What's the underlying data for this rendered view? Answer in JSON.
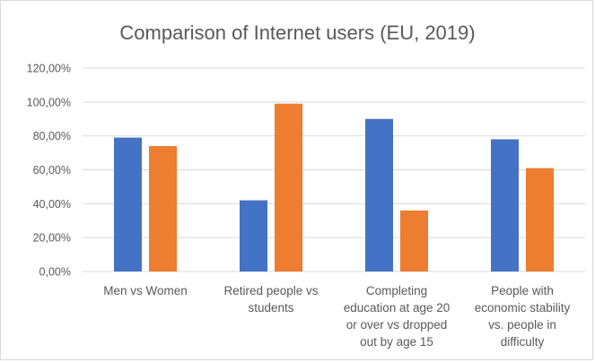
{
  "chart_data": {
    "type": "bar",
    "title": "Comparison of Internet users (EU, 2019)",
    "xlabel": "",
    "ylabel": "",
    "ylim": [
      0,
      120
    ],
    "yticks": [
      "0,00%",
      "20,00%",
      "40,00%",
      "60,00%",
      "80,00%",
      "100,00%",
      "120,00%"
    ],
    "grid": true,
    "legend": "none",
    "categories": [
      [
        "Men vs Women"
      ],
      [
        "Retired people vs",
        "students"
      ],
      [
        "Completing",
        "education at age 20",
        "or over vs dropped",
        "out by age 15"
      ],
      [
        "People with",
        "economic stability",
        "vs. people in",
        "difficulty"
      ]
    ],
    "series": [
      {
        "values": [
          79,
          42,
          90,
          78
        ],
        "color": "#4472c4"
      },
      {
        "values": [
          74,
          99,
          36,
          61
        ],
        "color": "#ed7d31"
      }
    ]
  }
}
